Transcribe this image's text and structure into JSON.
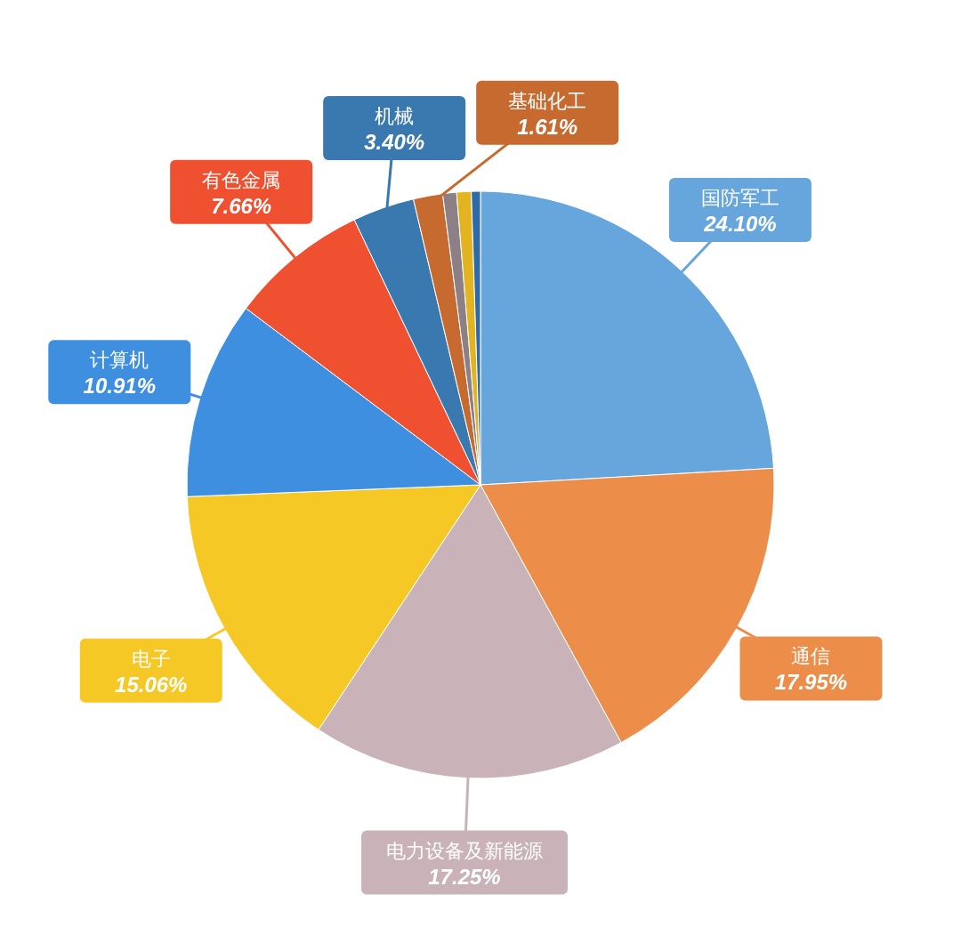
{
  "chart_data": {
    "type": "pie",
    "categories": [
      "国防军工",
      "通信",
      "电力设备及新能源",
      "电子",
      "计算机",
      "有色金属",
      "机械",
      "基础化工",
      null,
      null,
      null
    ],
    "values": [
      24.1,
      17.95,
      17.25,
      15.06,
      10.91,
      7.66,
      3.4,
      1.61,
      0.76,
      0.8,
      0.5
    ],
    "value_labels": [
      "24.10%",
      "17.95%",
      "17.25%",
      "15.06%",
      "10.91%",
      "7.66%",
      "3.40%",
      "1.61%",
      null,
      null,
      null
    ],
    "colors": [
      "#67a6dd",
      "#ec8d4a",
      "#c9b3b8",
      "#f5c825",
      "#3f8fe0",
      "#ee5030",
      "#3a78b0",
      "#c66a30",
      "#8d7f86",
      "#e3b320",
      "#2f6aa8"
    ],
    "legend": false
  }
}
